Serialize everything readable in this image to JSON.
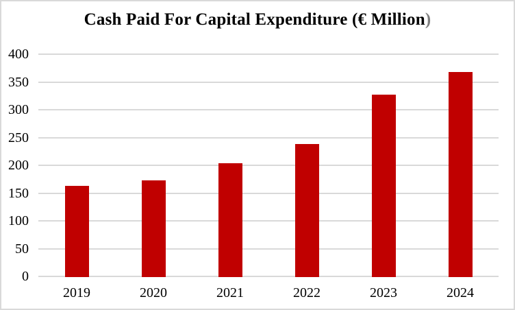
{
  "window": {
    "background_color": "#ffffff",
    "border_color": "#d9d9d9"
  },
  "chart_data": {
    "type": "bar",
    "title": "Cash Paid For Capital Expenditure (€ Million)",
    "title_main": "Cash Paid For Capital Expenditure (€ Million",
    "title_suffix": ")",
    "title_suffix_color": "#7f7f7f",
    "categories": [
      "2019",
      "2020",
      "2021",
      "2022",
      "2023",
      "2024"
    ],
    "values": [
      164,
      174,
      205,
      240,
      328,
      369
    ],
    "xlabel": "",
    "ylabel": "",
    "ylim": [
      0,
      400
    ],
    "y_ticks": [
      0,
      50,
      100,
      150,
      200,
      250,
      300,
      350,
      400
    ],
    "grid": true,
    "legend": false,
    "bar_color": "#c00000",
    "gridline_color": "#d9d9d9",
    "text_color": "#000000"
  }
}
